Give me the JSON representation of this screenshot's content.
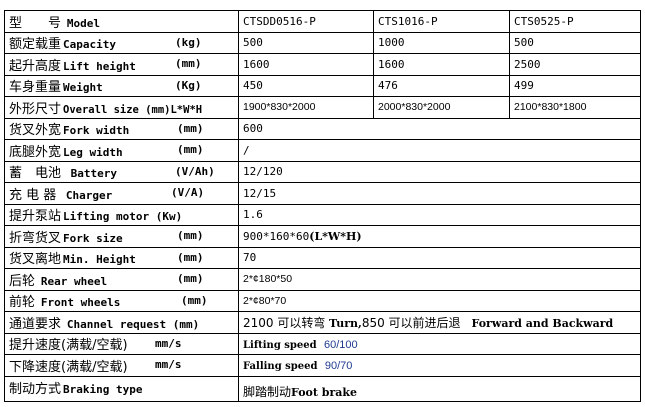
{
  "header": {
    "cn": "型　　号",
    "en": "Model",
    "models": [
      "CTSDD0516-P",
      "CTS1016-P",
      "CTS0525-P"
    ]
  },
  "rows": [
    {
      "cn": "额定载重",
      "en": "Capacity",
      "unit": "(kg)",
      "values": [
        "500",
        "1000",
        "500"
      ]
    },
    {
      "cn": "起升高度",
      "en": "Lift height",
      "unit": "(mm)",
      "values": [
        "1600",
        "1600",
        "2500"
      ]
    },
    {
      "cn": "车身重量",
      "en": "Weight",
      "unit": "(Kg)",
      "values": [
        "450",
        "476",
        "499"
      ]
    },
    {
      "cn": "外形尺寸",
      "en": "Overall size (mm)L*W*H",
      "values": [
        "1900*830*2000",
        "2000*830*2000",
        "2100*830*1800"
      ]
    },
    {
      "cn": "货叉外宽",
      "en": "Fork width",
      "unit": "(mm)",
      "value": "600"
    },
    {
      "cn": "底腿外宽",
      "en": "Leg width",
      "unit": "(mm)",
      "value": "/"
    },
    {
      "cn": "蓄　电池",
      "en": "Battery",
      "unit": "(V/Ah)",
      "value": "12/120"
    },
    {
      "cn": "充 电 器",
      "en": "Charger",
      "unit": "(V/A)",
      "value": "12/15"
    },
    {
      "cn": "提升泵站",
      "en": "Lifting motor (Kw)",
      "value": "1.6"
    },
    {
      "cn": "折弯货叉",
      "en": "Fork size",
      "unit": "(mm)",
      "value": "900*160*60",
      "value_suffix": "(L*W*H)"
    },
    {
      "cn": "货叉离地",
      "en": "Min. Height",
      "unit": "(mm)",
      "value": "70"
    },
    {
      "cn": "后轮",
      "en": "Rear wheel",
      "unit": "(mm)",
      "value": "2*¢180*50"
    },
    {
      "cn": "前轮",
      "en": "Front wheels",
      "unit": "(mm)",
      "value": "2*¢80*70"
    },
    {
      "cn": "通道要求",
      "en": "Channel request (mm)",
      "value_parts": [
        "2100 可以转弯",
        "Turn,",
        "850 可以前进后退",
        "Forward and Backward"
      ]
    },
    {
      "cn": "提升速度(满载/空载)",
      "en": "mm/s",
      "value_label": "Lifting speed",
      "value": "60/100"
    },
    {
      "cn": "下降速度(满载/空载)",
      "en": "mm/s",
      "value_label": "Falling speed",
      "value": "90/70"
    },
    {
      "cn": "制动方式",
      "en": "Braking type",
      "value_cn": "脚踏制动",
      "value_en": "Foot brake"
    }
  ],
  "colors": {
    "speed_value": "#1f3b8f",
    "border": "#000000"
  }
}
